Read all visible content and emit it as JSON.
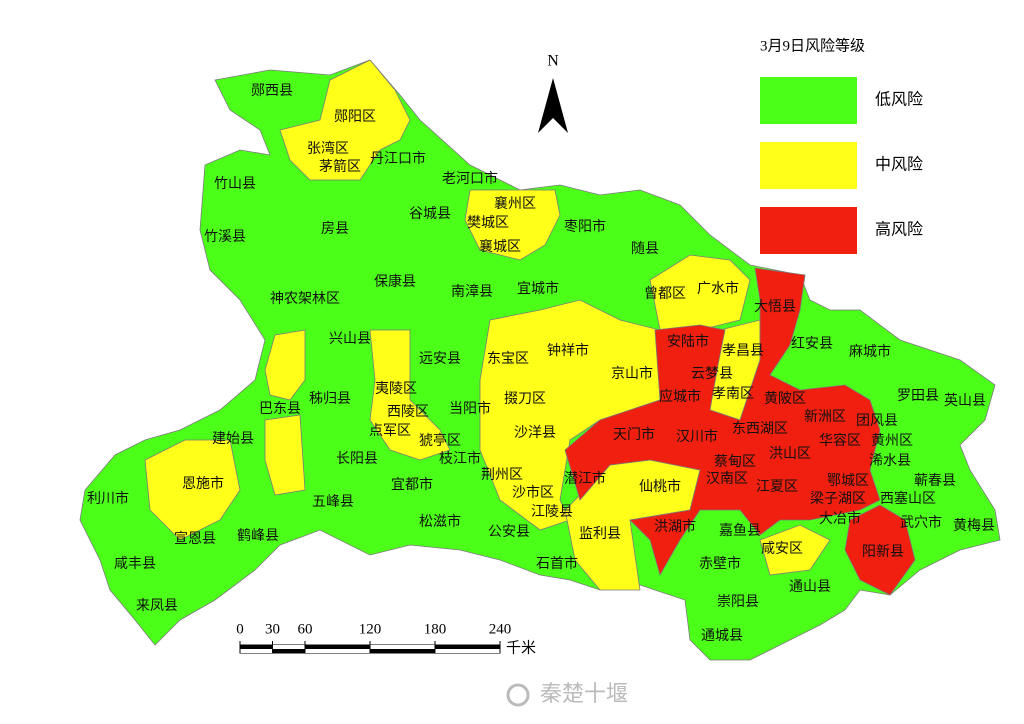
{
  "legend": {
    "title": "3月9日风险等级",
    "items": [
      {
        "label": "低风险",
        "color": "#4cff18"
      },
      {
        "label": "中风险",
        "color": "#ffff1a"
      },
      {
        "label": "高风险",
        "color": "#f01f0f"
      }
    ]
  },
  "north": "N",
  "scale": {
    "ticks": [
      0,
      30,
      60,
      120,
      180,
      240
    ],
    "unit": "千米"
  },
  "watermark": "秦楚十堰",
  "districts": [
    "郧西县",
    "郧阳区",
    "张湾区",
    "茅箭区",
    "丹江口市",
    "竹山县",
    "老河口市",
    "襄州区",
    "樊城区",
    "襄城区",
    "枣阳市",
    "谷城县",
    "房县",
    "竹溪县",
    "随县",
    "神农架林区",
    "保康县",
    "南漳县",
    "宜城市",
    "曾都区",
    "广水市",
    "大悟县",
    "兴山县",
    "远安县",
    "东宝区",
    "钟祥市",
    "京山市",
    "安陆市",
    "孝昌县",
    "红安县",
    "麻城市",
    "云梦县",
    "夷陵区",
    "秭归县",
    "巴东县",
    "当阳市",
    "掇刀区",
    "应城市",
    "孝南区",
    "黄陂区",
    "罗田县",
    "英山县",
    "西陵区",
    "点军区",
    "新洲区",
    "团风县",
    "建始县",
    "猇亭区",
    "沙洋县",
    "天门市",
    "汉川市",
    "东西湖区",
    "华容区",
    "黄州区",
    "长阳县",
    "枝江市",
    "蔡甸区",
    "洪山区",
    "浠水县",
    "恩施市",
    "潜江市",
    "荆州区",
    "仙桃市",
    "汉南区",
    "江夏区",
    "鄂城区",
    "蕲春县",
    "利川市",
    "五峰县",
    "宜都市",
    "沙市区",
    "梁子湖区",
    "西塞山区",
    "江陵县",
    "大冶市",
    "武穴市",
    "黄梅县",
    "松滋市",
    "公安县",
    "监利县",
    "洪湖市",
    "嘉鱼县",
    "宣恩县",
    "鹤峰县",
    "咸安区",
    "阳新县",
    "咸丰县",
    "石首市",
    "赤壁市",
    "通山县",
    "来凤县",
    "崇阳县",
    "通城县"
  ]
}
